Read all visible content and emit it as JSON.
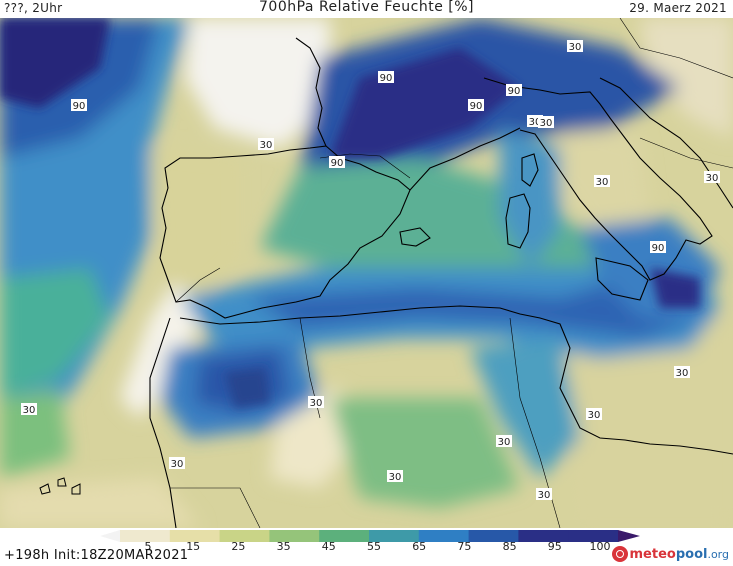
{
  "header": {
    "left": "???, 2Uhr",
    "title": "700hPa Relative Feuchte [%]",
    "date": "29. Maerz 2021"
  },
  "footer": {
    "run_info": "+198h  Init:18Z20MAR2021"
  },
  "legend": {
    "ticks": [
      "5",
      "15",
      "25",
      "35",
      "45",
      "55",
      "65",
      "75",
      "85",
      "95",
      "100"
    ],
    "colors": [
      "#f3f3f3",
      "#efe9cf",
      "#e6dfa8",
      "#c9d487",
      "#95c47a",
      "#5cb07c",
      "#3e9aa8",
      "#2f7fc4",
      "#2758a8",
      "#2a2f86",
      "#3a1a6a"
    ]
  },
  "brand": {
    "part_a": "meteo",
    "part_b": "pool",
    "part_c": ".org"
  },
  "map": {
    "contour_labels": [
      "90",
      "90",
      "90",
      "90",
      "90",
      "90",
      "30",
      "30",
      "30",
      "30",
      "30",
      "30",
      "30",
      "30",
      "30",
      "30",
      "30",
      "30",
      "30",
      "30"
    ]
  }
}
